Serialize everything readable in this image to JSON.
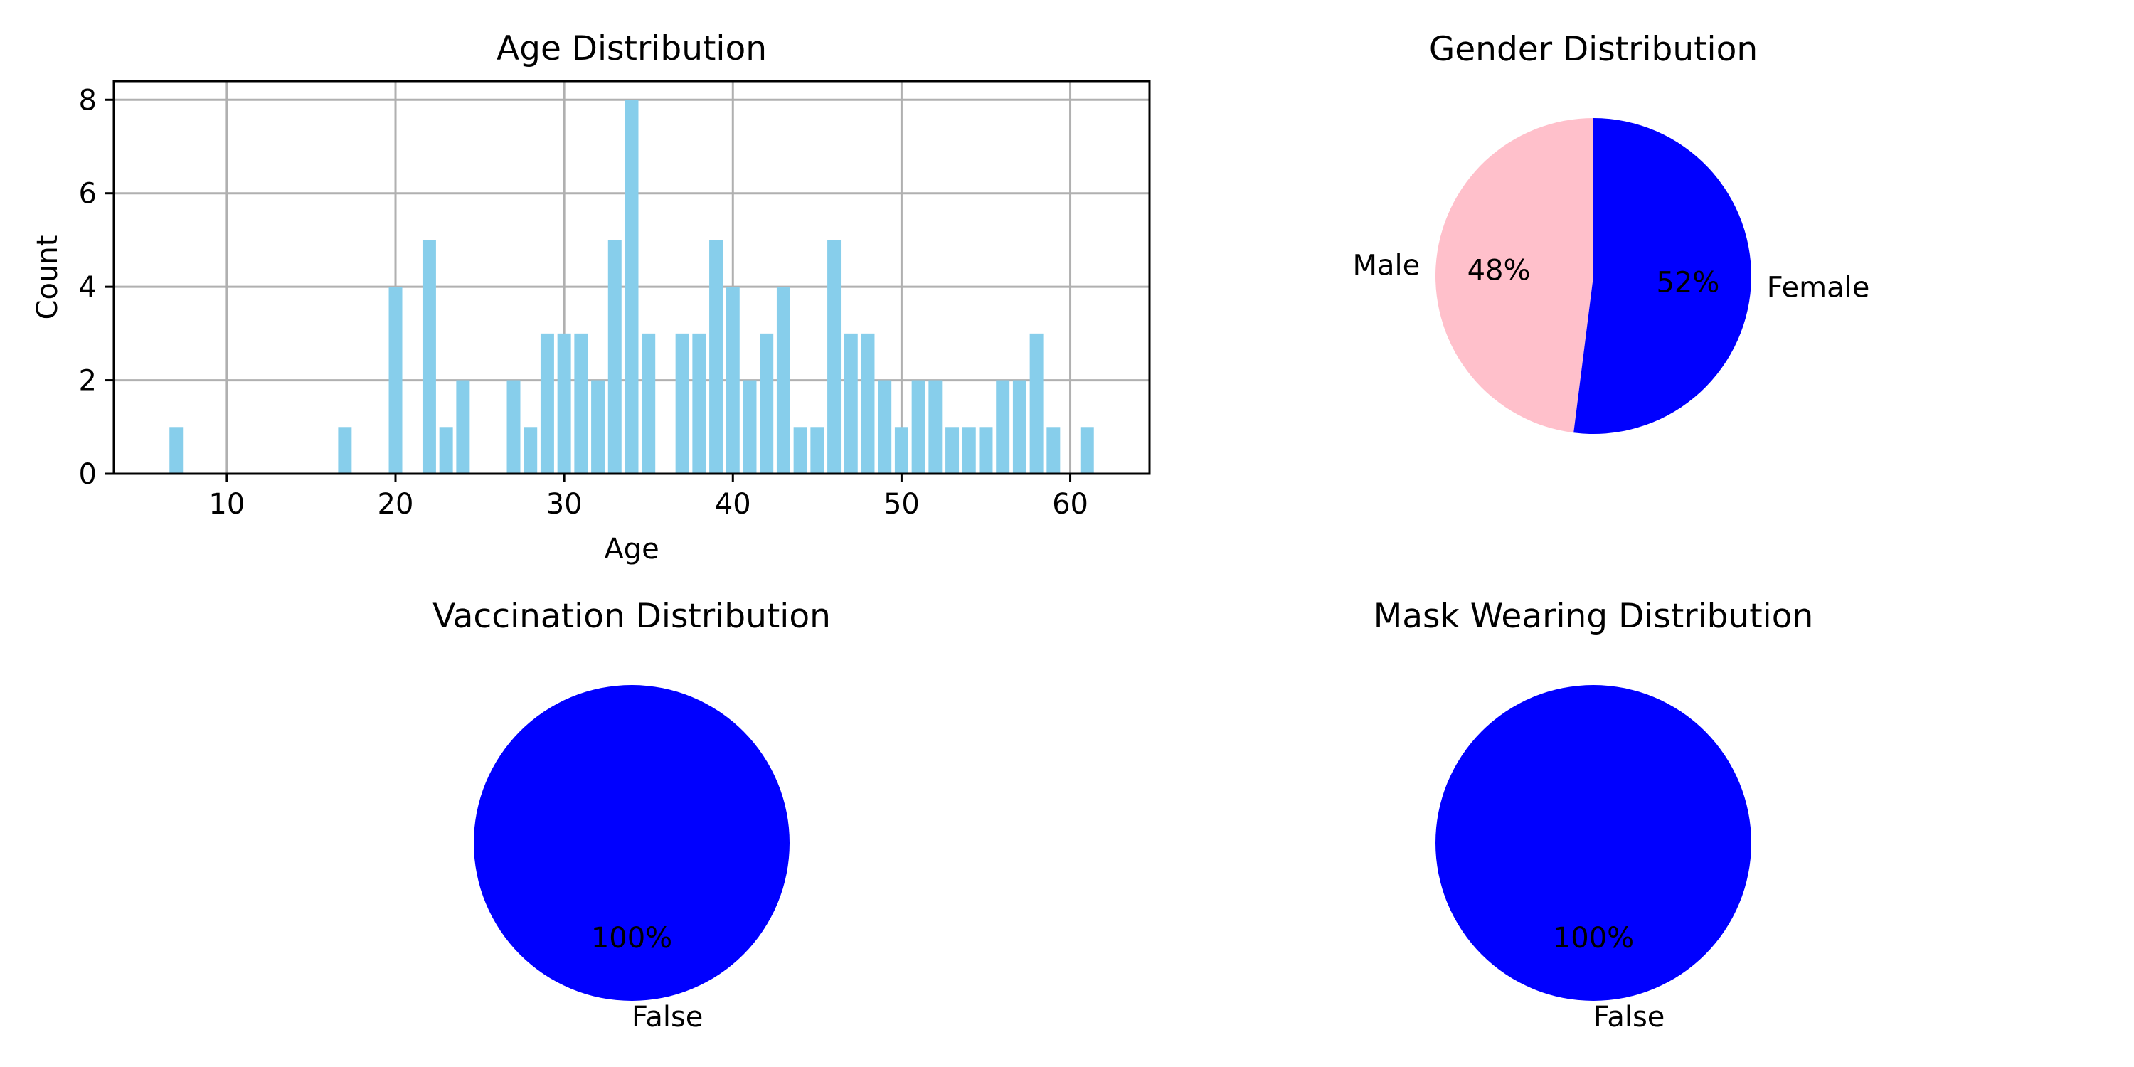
{
  "chart_data": [
    {
      "type": "bar",
      "title": "Age Distribution",
      "xlabel": "Age",
      "ylabel": "Count",
      "xlim": [
        3.3,
        64.7
      ],
      "ylim": [
        0,
        8.4
      ],
      "xticks": [
        10,
        20,
        30,
        40,
        50,
        60
      ],
      "yticks": [
        0,
        2,
        4,
        6,
        8
      ],
      "grid": true,
      "bar_color": "#87ceeb",
      "x": [
        7,
        17,
        20,
        22,
        23,
        24,
        27,
        28,
        29,
        30,
        31,
        32,
        33,
        34,
        35,
        37,
        38,
        39,
        40,
        41,
        42,
        43,
        44,
        45,
        46,
        47,
        48,
        49,
        50,
        51,
        52,
        53,
        54,
        55,
        56,
        57,
        58,
        59,
        61
      ],
      "values": [
        1,
        1,
        4,
        5,
        1,
        2,
        2,
        1,
        3,
        3,
        3,
        2,
        5,
        8,
        3,
        3,
        3,
        5,
        4,
        2,
        3,
        4,
        1,
        1,
        5,
        3,
        3,
        2,
        1,
        2,
        2,
        1,
        1,
        1,
        2,
        2,
        3,
        1,
        1
      ]
    },
    {
      "type": "pie",
      "title": "Gender Distribution",
      "labels": [
        "Male",
        "Female"
      ],
      "values": [
        48,
        52
      ],
      "pct_labels": [
        "48%",
        "52%"
      ],
      "colors": [
        "#ffc0cb",
        "#0000ff"
      ]
    },
    {
      "type": "pie",
      "title": "Vaccination Distribution",
      "labels": [
        "False"
      ],
      "values": [
        100
      ],
      "pct_labels": [
        "100%"
      ],
      "colors": [
        "#0000ff"
      ]
    },
    {
      "type": "pie",
      "title": "Mask Wearing Distribution",
      "labels": [
        "False"
      ],
      "values": [
        100
      ],
      "pct_labels": [
        "100%"
      ],
      "colors": [
        "#0000ff"
      ]
    }
  ]
}
